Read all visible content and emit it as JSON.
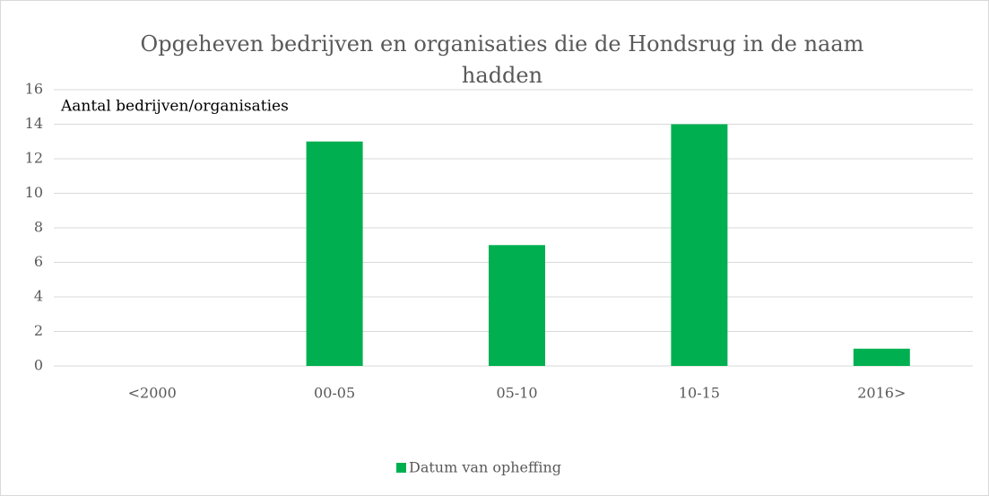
{
  "chart_data": {
    "type": "bar",
    "title": "Opgeheven bedrijven en organisaties die de Hondsrug in de naam hadden",
    "y_label": "Aantal bedrijven/organisaties",
    "categories": [
      "<2000",
      "00-05",
      "05-10",
      "10-15",
      "2016>"
    ],
    "series": [
      {
        "name": "Datum van opheffing",
        "color": "#00b050",
        "values": [
          0,
          13,
          7,
          14,
          1
        ]
      }
    ],
    "ylim": [
      0,
      16
    ],
    "yticks": [
      0,
      2,
      4,
      6,
      8,
      10,
      12,
      14,
      16
    ],
    "grid": true,
    "legend": "bottom"
  }
}
